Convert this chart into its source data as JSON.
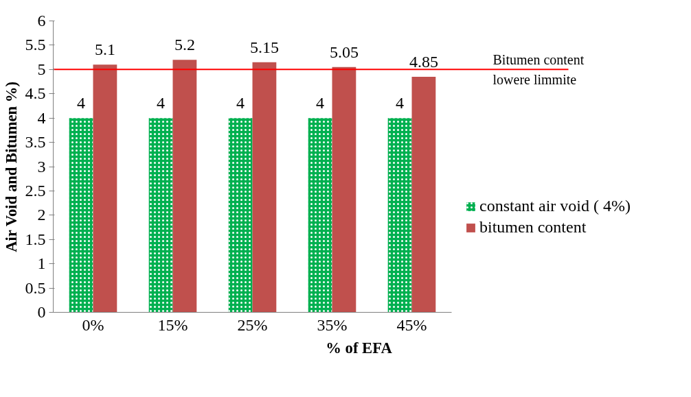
{
  "chart_data": {
    "type": "bar",
    "xlabel": "% of EFA",
    "ylabel": "Air Void and Bitumen %)",
    "categories": [
      "0%",
      "15%",
      "25%",
      "35%",
      "45%"
    ],
    "series": [
      {
        "name": "constant air void ( 4%)",
        "color": "#00b050",
        "values": [
          4,
          4,
          4,
          4,
          4
        ]
      },
      {
        "name": "bitumen content",
        "color": "#c0504d",
        "values": [
          5.1,
          5.2,
          5.15,
          5.05,
          4.85
        ]
      }
    ],
    "ylim": [
      0,
      6
    ],
    "yticks": [
      0,
      0.5,
      1,
      1.5,
      2,
      2.5,
      3,
      3.5,
      4,
      4.5,
      5,
      5.5,
      6
    ],
    "ref_lines": [
      {
        "axis": "y",
        "value": 5,
        "label": "Bitumen content lowere limmite",
        "color": "#ff0000"
      }
    ],
    "data_labels": true,
    "grid": false,
    "legend": "right"
  }
}
